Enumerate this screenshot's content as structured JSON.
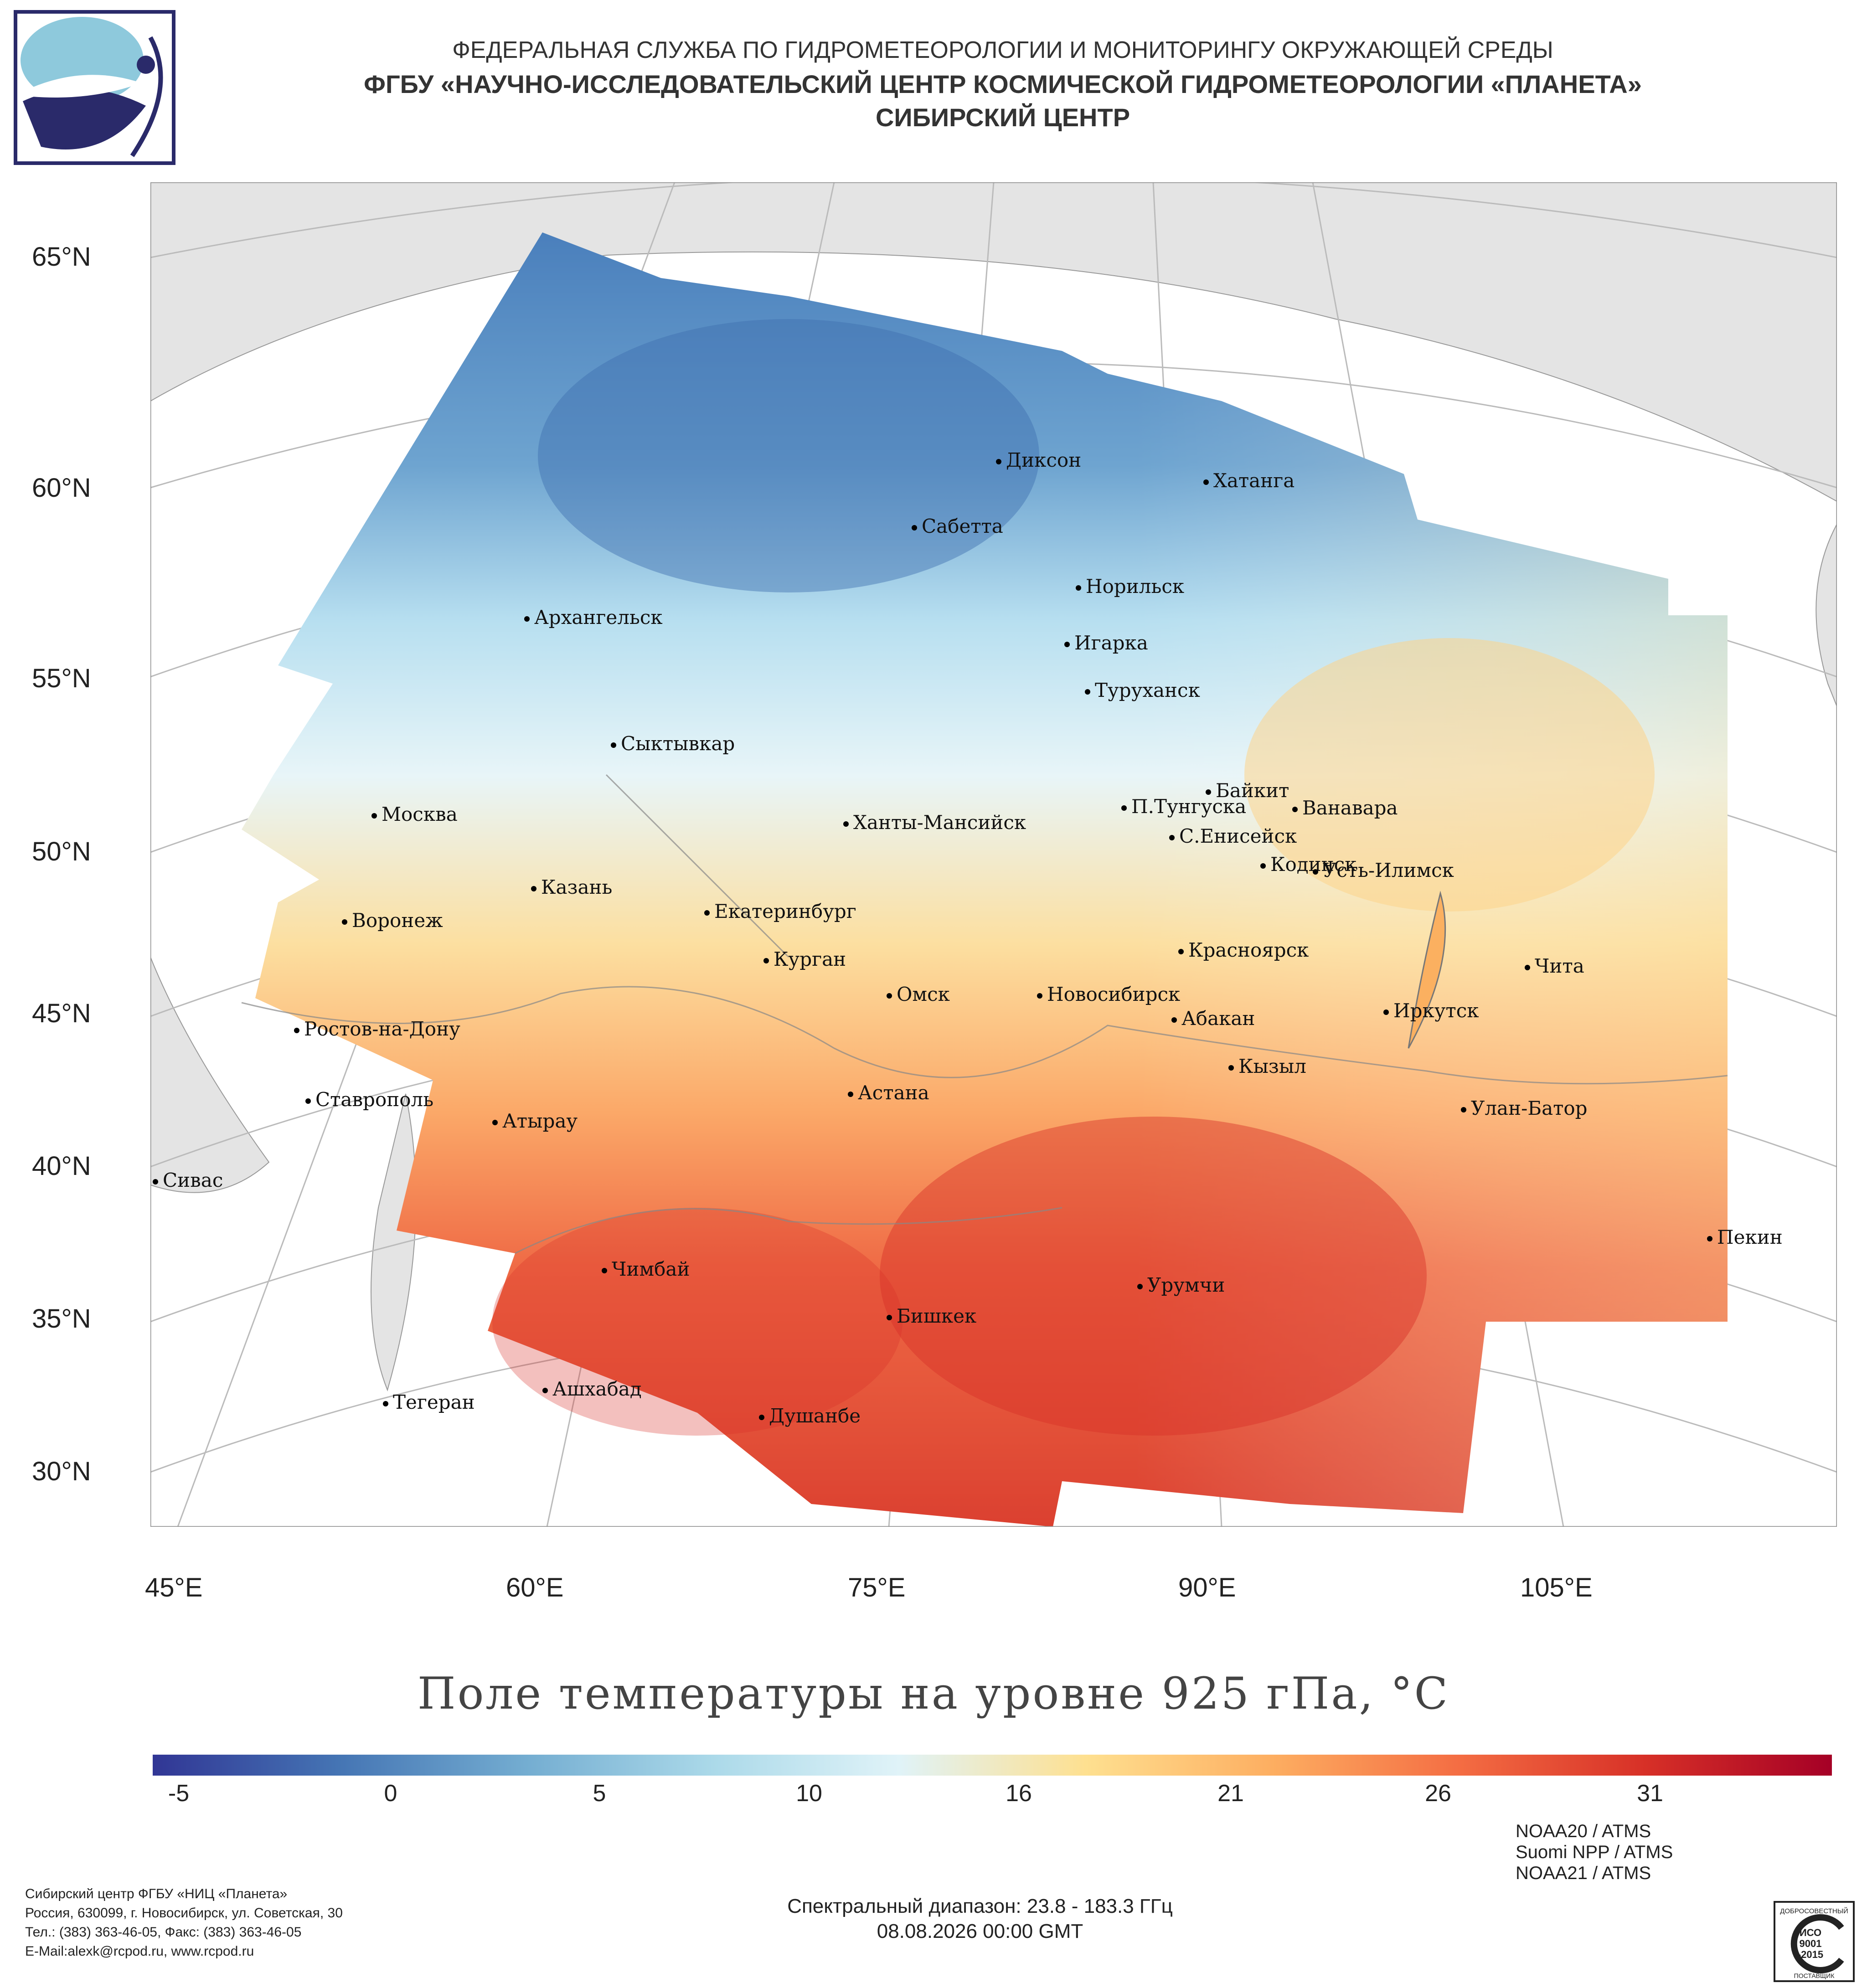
{
  "header": {
    "line1": "ФЕДЕРАЛЬНАЯ СЛУЖБА ПО ГИДРОМЕТЕОРОЛОГИИ И МОНИТОРИНГУ ОКРУЖАЮЩЕЙ СРЕДЫ",
    "line2": "ФГБУ «НАУЧНО-ИССЛЕДОВАТЕЛЬСКИЙ ЦЕНТР КОСМИЧЕСКОЙ ГИДРОМЕТЕОРОЛОГИИ «ПЛАНЕТА»",
    "line3": "СИБИРСКИЙ ЦЕНТР"
  },
  "map": {
    "lat_ticks": [
      "65°N",
      "60°N",
      "55°N",
      "50°N",
      "45°N",
      "40°N",
      "35°N",
      "30°N"
    ],
    "lon_ticks": [
      "45°E",
      "60°E",
      "75°E",
      "90°E",
      "105°E"
    ],
    "title": "Поле температуры на уровне 925 гПа, °C",
    "cities": [
      "Диксон",
      "Хатанга",
      "Сабетта",
      "Норильск",
      "Архангельск",
      "Игарка",
      "Туруханск",
      "Сыктывкар",
      "Байкит",
      "Москва",
      "П.Тунгуска",
      "Ванавара",
      "Ханты-Мансийск",
      "С.Енисейск",
      "Кодинск",
      "Усть-Илимск",
      "Казань",
      "Екатеринбург",
      "Воронеж",
      "Красноярск",
      "Курган",
      "Чита",
      "Омск",
      "Новосибирск",
      "Иркутск",
      "Абакан",
      "Ростов-на-Дону",
      "Кызыл",
      "Астана",
      "Ставрополь",
      "Улан-Батор",
      "Атырау",
      "Сивас",
      "Пекин",
      "Чимбай",
      "Урумчи",
      "Бишкек",
      "Тегеран",
      "Ашхабад",
      "Душанбе"
    ]
  },
  "colorbar": {
    "labels": [
      "-5",
      "0",
      "5",
      "10",
      "16",
      "21",
      "26",
      "31"
    ],
    "stops": [
      "#313695",
      "#4575b4",
      "#74add1",
      "#abd9e9",
      "#e0f3f8",
      "#fee090",
      "#fdae61",
      "#f46d43",
      "#d73027",
      "#a50026"
    ]
  },
  "footer": {
    "org": "Сибирский центр ФГБУ «НИЦ «Планета»",
    "address": "Россия, 630099, г. Новосибирск, ул. Советская, 30",
    "phone": "Тел.: (383) 363-46-05, Факс: (383) 363-46-05",
    "email": "E-Mail:alexk@rcpod.ru, www.rcpod.ru",
    "satellites": [
      "NOAA20 / ATMS",
      "Suomi NPP / ATMS",
      "NOAA21 / ATMS"
    ],
    "spectral": "Спектральный диапазон: 23.8 - 183.3 ГГц",
    "datetime": "08.08.2026 00:00 GMT",
    "cert": {
      "top": "ДОБРОСОВЕСТНЫЙ",
      "iso": "ИСО",
      "num": "9001",
      "year": "-2015",
      "bottom": "ПОСТАВЩИК"
    }
  }
}
